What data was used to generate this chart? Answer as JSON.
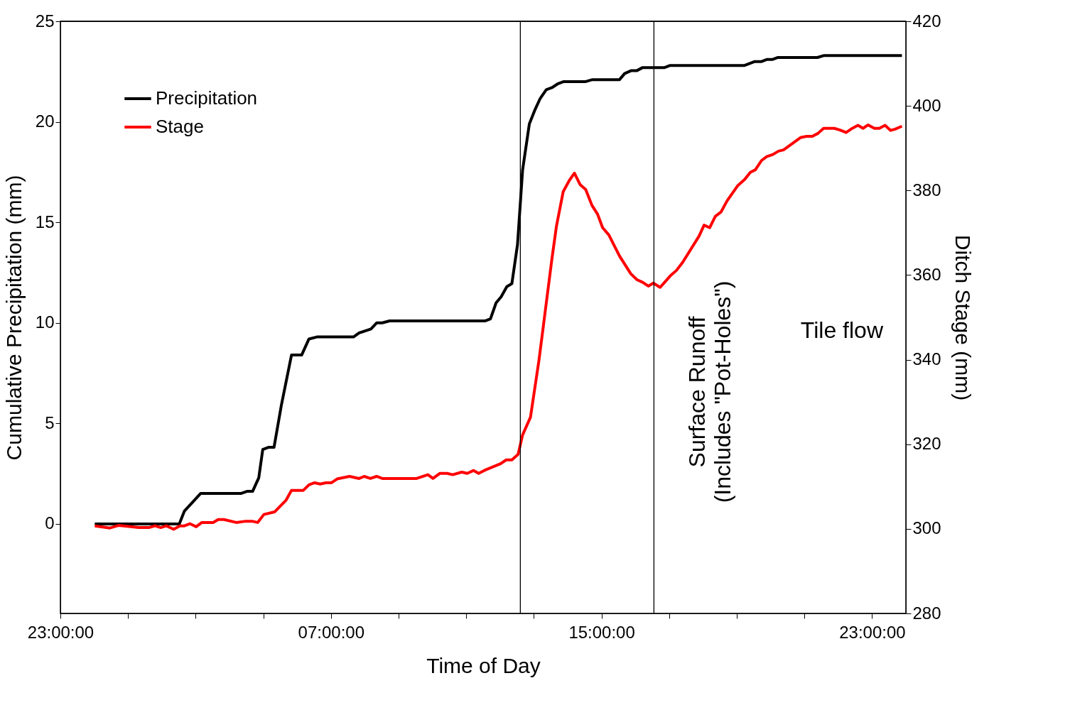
{
  "chart_data": {
    "type": "line",
    "xlabel": "Time of Day",
    "ylabel": "Cumulative Precipitation (mm)",
    "y2label": "Ditch Stage (mm)",
    "xlim": [
      "2000-01-01T23:00",
      "2000-01-03T00:00"
    ],
    "xticks": [
      {
        "value": "2000-01-01T23:00",
        "label": "23:00:00"
      },
      {
        "value": "2000-01-02T01:00",
        "label": null
      },
      {
        "value": "2000-01-02T03:00",
        "label": null
      },
      {
        "value": "2000-01-02T05:00",
        "label": null
      },
      {
        "value": "2000-01-02T07:00",
        "label": "07:00:00"
      },
      {
        "value": "2000-01-02T09:00",
        "label": null
      },
      {
        "value": "2000-01-02T11:00",
        "label": null
      },
      {
        "value": "2000-01-02T13:00",
        "label": null
      },
      {
        "value": "2000-01-02T15:00",
        "label": "15:00:00"
      },
      {
        "value": "2000-01-02T17:00",
        "label": null
      },
      {
        "value": "2000-01-02T19:00",
        "label": null
      },
      {
        "value": "2000-01-02T21:00",
        "label": null
      },
      {
        "value": "2000-01-02T23:00",
        "label": "23:00:00"
      }
    ],
    "ylim": [
      -4.45,
      25
    ],
    "yticks": [
      0,
      5,
      10,
      15,
      20,
      25
    ],
    "y2lim": [
      280,
      420
    ],
    "y2ticks": [
      280,
      300,
      320,
      340,
      360,
      380,
      400,
      420
    ],
    "grid": false,
    "legend": "top left",
    "marker": "none",
    "line_style": "solid",
    "series": [
      {
        "name": "Precipitation",
        "color": "#000000",
        "x": [
          "2000-01-02T00:01",
          "2000-01-02T02:31",
          "2000-01-02T02:40",
          "2000-01-02T03:09",
          "2000-01-02T04:21",
          "2000-01-02T04:31",
          "2000-01-02T04:41",
          "2000-01-02T04:52",
          "2000-01-02T04:59",
          "2000-01-02T05:09",
          "2000-01-02T05:19",
          "2000-01-02T05:32",
          "2000-01-02T05:50",
          "2000-01-02T06:08",
          "2000-01-02T06:21",
          "2000-01-02T06:35",
          "2000-01-02T07:40",
          "2000-01-02T07:50",
          "2000-01-02T08:11",
          "2000-01-02T08:21",
          "2000-01-02T08:31",
          "2000-01-02T08:44",
          "2000-01-02T11:34",
          "2000-01-02T11:43",
          "2000-01-02T11:53",
          "2000-01-02T12:02",
          "2000-01-02T12:12",
          "2000-01-02T12:21",
          "2000-01-02T12:31",
          "2000-01-02T12:40",
          "2000-01-02T12:52",
          "2000-01-02T13:02",
          "2000-01-02T13:11",
          "2000-01-02T13:22",
          "2000-01-02T13:32",
          "2000-01-02T13:43",
          "2000-01-02T13:53",
          "2000-01-02T14:32",
          "2000-01-02T14:44",
          "2000-01-02T15:32",
          "2000-01-02T15:41",
          "2000-01-02T15:53",
          "2000-01-02T16:03",
          "2000-01-02T16:13",
          "2000-01-02T16:52",
          "2000-01-02T17:01",
          "2000-01-02T19:13",
          "2000-01-02T19:32",
          "2000-01-02T19:44",
          "2000-01-02T19:53",
          "2000-01-02T20:03",
          "2000-01-02T20:13",
          "2000-01-02T21:23",
          "2000-01-02T21:35",
          "2000-01-02T23:53"
        ],
        "values": [
          0,
          0,
          0.64,
          1.52,
          1.52,
          1.62,
          1.62,
          2.3,
          3.7,
          3.81,
          3.81,
          5.9,
          8.4,
          8.4,
          9.2,
          9.3,
          9.3,
          9.5,
          9.7,
          10.0,
          10.0,
          10.1,
          10.1,
          10.2,
          11.0,
          11.3,
          11.8,
          11.95,
          13.9,
          17.6,
          19.9,
          20.6,
          21.15,
          21.6,
          21.7,
          21.9,
          22.0,
          22.0,
          22.1,
          22.1,
          22.4,
          22.55,
          22.55,
          22.7,
          22.7,
          22.8,
          22.8,
          23.0,
          23.0,
          23.1,
          23.1,
          23.2,
          23.2,
          23.3,
          23.3
        ]
      },
      {
        "name": "Stage",
        "color": "#ff0000",
        "axis": "y2",
        "x": [
          "2000-01-02T00:01",
          "2000-01-02T00:28",
          "2000-01-02T00:43",
          "2000-01-02T01:19",
          "2000-01-02T01:37",
          "2000-01-02T01:48",
          "2000-01-02T01:58",
          "2000-01-02T02:08",
          "2000-01-02T02:21",
          "2000-01-02T02:32",
          "2000-01-02T02:40",
          "2000-01-02T02:50",
          "2000-01-02T03:01",
          "2000-01-02T03:11",
          "2000-01-02T03:31",
          "2000-01-02T03:40",
          "2000-01-02T03:50",
          "2000-01-02T04:12",
          "2000-01-02T04:29",
          "2000-01-02T04:40",
          "2000-01-02T04:50",
          "2000-01-02T05:01",
          "2000-01-02T05:20",
          "2000-01-02T05:31",
          "2000-01-02T05:40",
          "2000-01-02T05:50",
          "2000-01-02T06:11",
          "2000-01-02T06:21",
          "2000-01-02T06:31",
          "2000-01-02T06:41",
          "2000-01-02T06:51",
          "2000-01-02T07:01",
          "2000-01-02T07:11",
          "2000-01-02T07:33",
          "2000-01-02T07:50",
          "2000-01-02T07:59",
          "2000-01-02T08:10",
          "2000-01-02T08:21",
          "2000-01-02T08:31",
          "2000-01-02T09:32",
          "2000-01-02T09:52",
          "2000-01-02T10:01",
          "2000-01-02T10:13",
          "2000-01-02T10:26",
          "2000-01-02T10:36",
          "2000-01-02T10:52",
          "2000-01-02T11:02",
          "2000-01-02T11:13",
          "2000-01-02T11:22",
          "2000-01-02T11:32",
          "2000-01-02T11:41",
          "2000-01-02T12:01",
          "2000-01-02T12:11",
          "2000-01-02T12:21",
          "2000-01-02T12:32",
          "2000-01-02T12:40",
          "2000-01-02T12:54",
          "2000-01-02T13:09",
          "2000-01-02T13:19",
          "2000-01-02T13:32",
          "2000-01-02T13:40",
          "2000-01-02T13:52",
          "2000-01-02T14:03",
          "2000-01-02T14:12",
          "2000-01-02T14:22",
          "2000-01-02T14:32",
          "2000-01-02T14:43",
          "2000-01-02T14:53",
          "2000-01-02T15:02",
          "2000-01-02T15:13",
          "2000-01-02T15:32",
          "2000-01-02T15:52",
          "2000-01-02T16:03",
          "2000-01-02T16:13",
          "2000-01-02T16:23",
          "2000-01-02T16:32",
          "2000-01-02T16:44",
          "2000-01-02T16:52",
          "2000-01-02T17:02",
          "2000-01-02T17:13",
          "2000-01-02T17:24",
          "2000-01-02T17:53",
          "2000-01-02T18:02",
          "2000-01-02T18:12",
          "2000-01-02T18:22",
          "2000-01-02T18:32",
          "2000-01-02T18:43",
          "2000-01-02T19:02",
          "2000-01-02T19:14",
          "2000-01-02T19:24",
          "2000-01-02T19:33",
          "2000-01-02T19:44",
          "2000-01-02T19:53",
          "2000-01-02T20:04",
          "2000-01-02T20:14",
          "2000-01-02T20:23",
          "2000-01-02T20:53",
          "2000-01-02T21:04",
          "2000-01-02T21:14",
          "2000-01-02T21:24",
          "2000-01-02T21:34",
          "2000-01-02T21:53",
          "2000-01-02T22:03",
          "2000-01-02T22:14",
          "2000-01-02T22:25",
          "2000-01-02T22:35",
          "2000-01-02T22:44",
          "2000-01-02T22:53",
          "2000-01-02T23:04",
          "2000-01-02T23:13",
          "2000-01-02T23:23",
          "2000-01-02T23:33",
          "2000-01-02T23:41",
          "2000-01-02T23:53"
        ],
        "values": [
          300.7,
          300.2,
          300.8,
          300.3,
          300.3,
          300.7,
          300.3,
          300.7,
          299.9,
          300.7,
          300.7,
          301.2,
          300.5,
          301.5,
          301.5,
          302.2,
          302.2,
          301.5,
          301.8,
          301.8,
          301.5,
          303.4,
          304.0,
          305.5,
          306.7,
          309.1,
          309.1,
          310.4,
          310.9,
          310.6,
          310.9,
          310.9,
          311.8,
          312.4,
          311.9,
          312.4,
          311.9,
          312.4,
          311.9,
          311.9,
          312.8,
          311.9,
          313.1,
          313.1,
          312.8,
          313.4,
          313.1,
          313.8,
          313.1,
          313.8,
          314.3,
          315.4,
          316.3,
          316.3,
          317.6,
          322.2,
          326.4,
          339.8,
          350.2,
          363.8,
          371.5,
          379.7,
          382.4,
          384.1,
          381.4,
          380.2,
          376.5,
          374.4,
          371.2,
          369.5,
          364.5,
          360.3,
          358.9,
          358.3,
          357.4,
          358.1,
          357.1,
          358.3,
          359.8,
          361.1,
          363.0,
          369.2,
          371.8,
          371.2,
          373.9,
          374.9,
          377.6,
          381.2,
          382.6,
          384.3,
          384.9,
          387.1,
          388.0,
          388.5,
          389.3,
          389.6,
          392.5,
          392.8,
          392.8,
          393.5,
          394.7,
          394.7,
          394.3,
          393.7,
          394.7,
          395.4,
          394.7,
          395.5,
          394.7,
          394.7,
          395.4,
          394.2,
          394.5,
          395.2
        ]
      }
    ],
    "ref_lines": [
      {
        "axis": "x",
        "value": "2000-01-02T12:36",
        "color": "#000000"
      },
      {
        "axis": "x",
        "value": "2000-01-02T16:33",
        "color": "#000000"
      }
    ],
    "annotations": [
      "Surface Runoff\n(Includes \"Pot-Holes\")",
      "Tile flow"
    ]
  }
}
